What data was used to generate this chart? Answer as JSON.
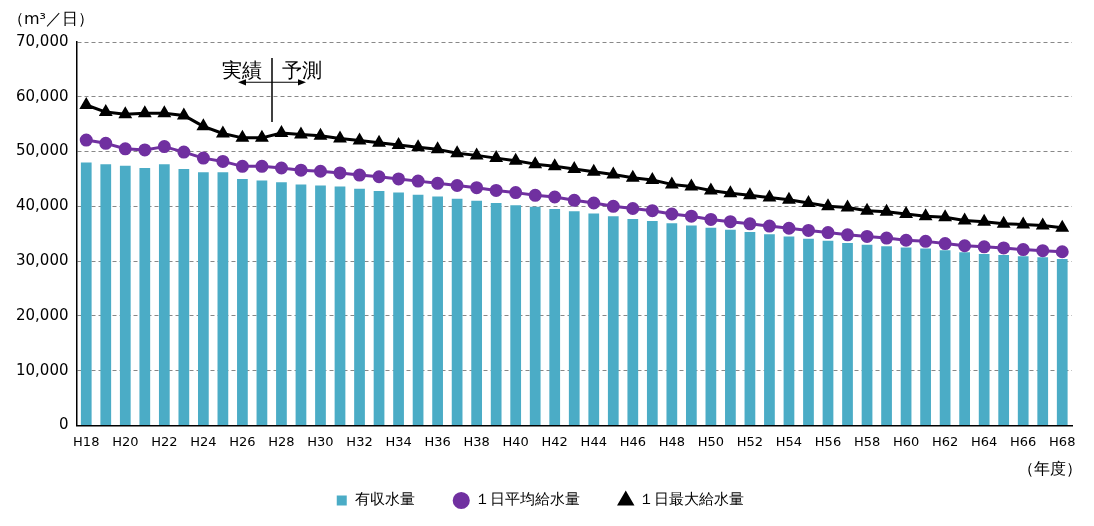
{
  "chart_data": {
    "type": "bar",
    "ylabel": "（m³／日）",
    "xlabel": "（年度）",
    "annotations": [
      "実績",
      "予測"
    ],
    "categories": [
      "H18",
      null,
      "H20",
      null,
      "H22",
      null,
      "H24",
      null,
      "H26",
      null,
      "H28",
      null,
      "H30",
      null,
      "H32",
      null,
      "H34",
      null,
      "H36",
      null,
      "H38",
      null,
      "H40",
      null,
      "H42",
      null,
      "H44",
      null,
      "H46",
      null,
      "H48",
      null,
      "H50",
      null,
      "H52",
      null,
      "H54",
      null,
      "H56",
      null,
      "H58",
      null,
      "H60",
      null,
      "H62",
      null,
      "H64",
      null,
      "H66",
      null,
      "H68"
    ],
    "series": [
      {
        "name": "有収水量",
        "color": "#4bacc6",
        "values": [
          48000,
          47700,
          47400,
          47000,
          47700,
          46800,
          46200,
          46200,
          45000,
          44700,
          44400,
          44000,
          43800,
          43600,
          43200,
          42800,
          42500,
          42100,
          41800,
          41400,
          41000,
          40600,
          40200,
          39900,
          39500,
          39100,
          38700,
          38200,
          37700,
          37300,
          36900,
          36500,
          36100,
          35700,
          35300,
          34900,
          34500,
          34100,
          33700,
          33300,
          33000,
          32700,
          32500,
          32300,
          32000,
          31600,
          31300,
          31100,
          30900,
          30700,
          30400
        ]
      },
      {
        "name": "１日平均給水量",
        "type": "line",
        "marker": "circle",
        "color": "#7030a0",
        "values": [
          52100,
          51500,
          50500,
          50300,
          50900,
          49900,
          48800,
          48200,
          47300,
          47300,
          47000,
          46600,
          46400,
          46100,
          45700,
          45400,
          45000,
          44600,
          44200,
          43800,
          43400,
          42900,
          42500,
          42000,
          41700,
          41100,
          40600,
          40000,
          39600,
          39200,
          38600,
          38200,
          37600,
          37200,
          36800,
          36400,
          36000,
          35600,
          35200,
          34800,
          34500,
          34200,
          33800,
          33600,
          33200,
          32800,
          32600,
          32400,
          32100,
          31900,
          31700
        ]
      },
      {
        "name": "１日最大給水量",
        "type": "line",
        "marker": "triangle",
        "color": "#000000",
        "values": [
          58500,
          57200,
          56800,
          57000,
          57000,
          56600,
          54600,
          53300,
          52500,
          52500,
          53400,
          53100,
          52900,
          52400,
          52000,
          51600,
          51200,
          50800,
          50400,
          49700,
          49300,
          48800,
          48300,
          47700,
          47300,
          46800,
          46300,
          45800,
          45200,
          44800,
          44000,
          43600,
          42900,
          42400,
          42000,
          41600,
          41200,
          40600,
          40000,
          39800,
          39200,
          39000,
          38600,
          38200,
          38000,
          37400,
          37200,
          36800,
          36700,
          36500,
          36100
        ]
      }
    ],
    "ylim": [
      0,
      70000
    ],
    "yticks": [
      0,
      {
        "value": 10000,
        "label": "10,000"
      },
      {
        "value": 20000,
        "label": "20,000"
      },
      {
        "value": 30000,
        "label": "30,000"
      },
      {
        "value": 40000,
        "label": "40,000"
      },
      {
        "value": 50000,
        "label": "50,000"
      },
      {
        "value": 60000,
        "label": "60,000"
      },
      {
        "value": 70000,
        "label": "70,000"
      }
    ],
    "grid": "y",
    "legend": "bottom"
  }
}
